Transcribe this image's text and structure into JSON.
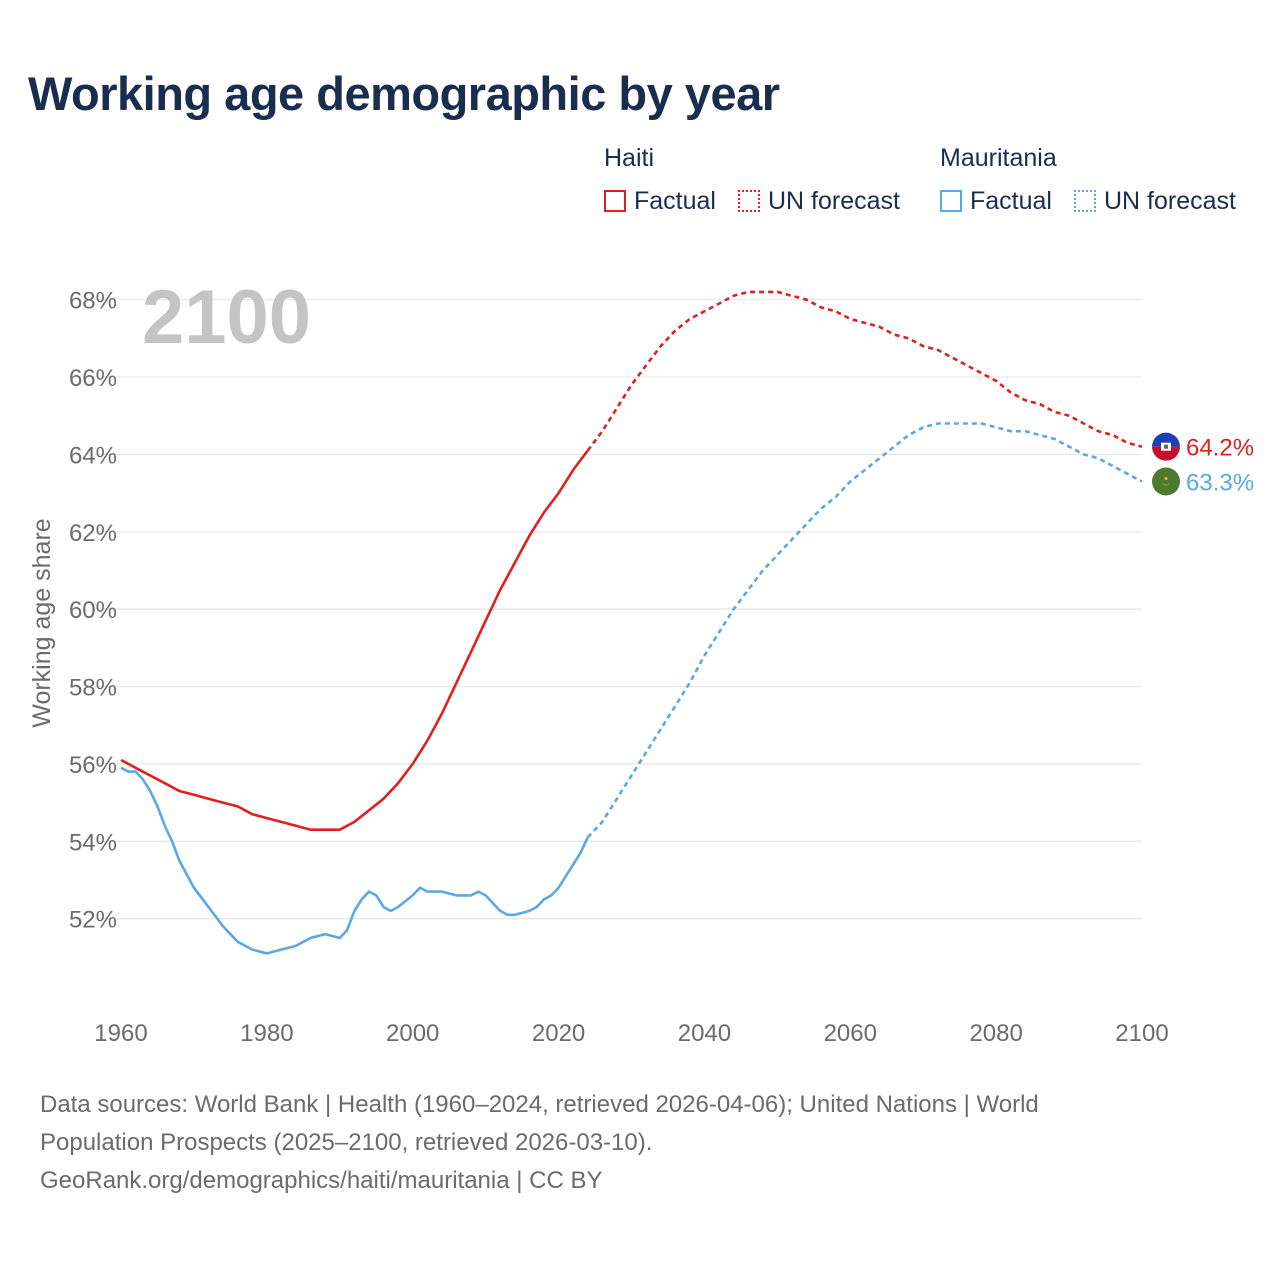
{
  "title": "Working age demographic by year",
  "legend": {
    "groups": [
      {
        "name": "Haiti",
        "color": "#e02020",
        "items": [
          "Factual",
          "UN forecast"
        ]
      },
      {
        "name": "Mauritania",
        "color": "#5aa8e6",
        "items": [
          "Factual",
          "UN forecast"
        ]
      }
    ]
  },
  "footer": {
    "line1": "Data sources: World Bank | Health (1960–2024, retrieved 2026-04-06); United Nations | World",
    "line2": "Population Prospects (2025–2100, retrieved 2026-03-10).",
    "line3": "GeoRank.org/demographics/haiti/mauritania | CC BY"
  },
  "chart_data": {
    "type": "line",
    "title": "Working age demographic by year",
    "year_watermark": "2100",
    "xlabel": "",
    "ylabel": "Working age share",
    "xlim": [
      1960,
      2100
    ],
    "ylim": [
      50,
      69
    ],
    "x_ticks": [
      "1960",
      "1980",
      "2000",
      "2020",
      "2040",
      "2060",
      "2080",
      "2100"
    ],
    "y_ticks": [
      {
        "value": 52,
        "label": "52%"
      },
      {
        "value": 54,
        "label": "54%"
      },
      {
        "value": 56,
        "label": "56%"
      },
      {
        "value": 58,
        "label": "58%"
      },
      {
        "value": 60,
        "label": "60%"
      },
      {
        "value": 62,
        "label": "62%"
      },
      {
        "value": 64,
        "label": "64%"
      },
      {
        "value": 66,
        "label": "66%"
      },
      {
        "value": 68,
        "label": "68%"
      }
    ],
    "series": [
      {
        "name": "Haiti",
        "color": "#e02020",
        "end_label": "64.2%",
        "flag_icon": "haiti-flag-icon",
        "factual": {
          "x": [
            1960,
            1962,
            1964,
            1966,
            1968,
            1970,
            1972,
            1974,
            1976,
            1978,
            1980,
            1982,
            1984,
            1986,
            1988,
            1990,
            1992,
            1994,
            1996,
            1998,
            2000,
            2002,
            2004,
            2006,
            2008,
            2010,
            2012,
            2014,
            2016,
            2018,
            2020,
            2022,
            2024
          ],
          "y": [
            56.1,
            55.9,
            55.7,
            55.5,
            55.3,
            55.2,
            55.1,
            55.0,
            54.9,
            54.7,
            54.6,
            54.5,
            54.4,
            54.3,
            54.3,
            54.3,
            54.5,
            54.8,
            55.1,
            55.5,
            56.0,
            56.6,
            57.3,
            58.1,
            58.9,
            59.7,
            60.5,
            61.2,
            61.9,
            62.5,
            63.0,
            63.6,
            64.1
          ]
        },
        "forecast": {
          "x": [
            2024,
            2026,
            2028,
            2030,
            2032,
            2034,
            2036,
            2038,
            2040,
            2042,
            2044,
            2046,
            2048,
            2050,
            2052,
            2054,
            2056,
            2058,
            2060,
            2062,
            2064,
            2066,
            2068,
            2070,
            2072,
            2074,
            2076,
            2078,
            2080,
            2082,
            2084,
            2086,
            2088,
            2090,
            2092,
            2094,
            2096,
            2098,
            2100
          ],
          "y": [
            64.1,
            64.6,
            65.2,
            65.8,
            66.3,
            66.8,
            67.2,
            67.5,
            67.7,
            67.9,
            68.1,
            68.2,
            68.2,
            68.2,
            68.1,
            68.0,
            67.8,
            67.7,
            67.5,
            67.4,
            67.3,
            67.1,
            67.0,
            66.8,
            66.7,
            66.5,
            66.3,
            66.1,
            65.9,
            65.6,
            65.4,
            65.3,
            65.1,
            65.0,
            64.8,
            64.6,
            64.5,
            64.3,
            64.2
          ]
        }
      },
      {
        "name": "Mauritania",
        "color": "#5aa8e6",
        "end_label": "63.3%",
        "flag_icon": "mauritania-flag-icon",
        "factual": {
          "x": [
            1960,
            1961,
            1962,
            1963,
            1964,
            1965,
            1966,
            1967,
            1968,
            1970,
            1972,
            1974,
            1976,
            1978,
            1980,
            1982,
            1984,
            1986,
            1988,
            1990,
            1991,
            1992,
            1993,
            1994,
            1995,
            1996,
            1997,
            1998,
            2000,
            2001,
            2002,
            2004,
            2006,
            2008,
            2009,
            2010,
            2012,
            2013,
            2014,
            2016,
            2017,
            2018,
            2019,
            2020,
            2021,
            2022,
            2023,
            2024
          ],
          "y": [
            55.9,
            55.8,
            55.8,
            55.6,
            55.3,
            54.9,
            54.4,
            54.0,
            53.5,
            52.8,
            52.3,
            51.8,
            51.4,
            51.2,
            51.1,
            51.2,
            51.3,
            51.5,
            51.6,
            51.5,
            51.7,
            52.2,
            52.5,
            52.7,
            52.6,
            52.3,
            52.2,
            52.3,
            52.6,
            52.8,
            52.7,
            52.7,
            52.6,
            52.6,
            52.7,
            52.6,
            52.2,
            52.1,
            52.1,
            52.2,
            52.3,
            52.5,
            52.6,
            52.8,
            53.1,
            53.4,
            53.7,
            54.1
          ]
        },
        "forecast": {
          "x": [
            2024,
            2026,
            2028,
            2030,
            2032,
            2034,
            2036,
            2038,
            2040,
            2042,
            2044,
            2046,
            2048,
            2050,
            2052,
            2054,
            2056,
            2058,
            2060,
            2062,
            2064,
            2066,
            2068,
            2070,
            2072,
            2074,
            2076,
            2078,
            2080,
            2082,
            2084,
            2086,
            2088,
            2090,
            2092,
            2094,
            2096,
            2098,
            2100
          ],
          "y": [
            54.1,
            54.5,
            55.1,
            55.7,
            56.3,
            56.9,
            57.5,
            58.1,
            58.8,
            59.4,
            60.0,
            60.5,
            61.0,
            61.4,
            61.8,
            62.2,
            62.6,
            62.9,
            63.3,
            63.6,
            63.9,
            64.2,
            64.5,
            64.7,
            64.8,
            64.8,
            64.8,
            64.8,
            64.7,
            64.6,
            64.6,
            64.5,
            64.4,
            64.2,
            64.0,
            63.9,
            63.7,
            63.5,
            63.3
          ]
        }
      }
    ]
  }
}
